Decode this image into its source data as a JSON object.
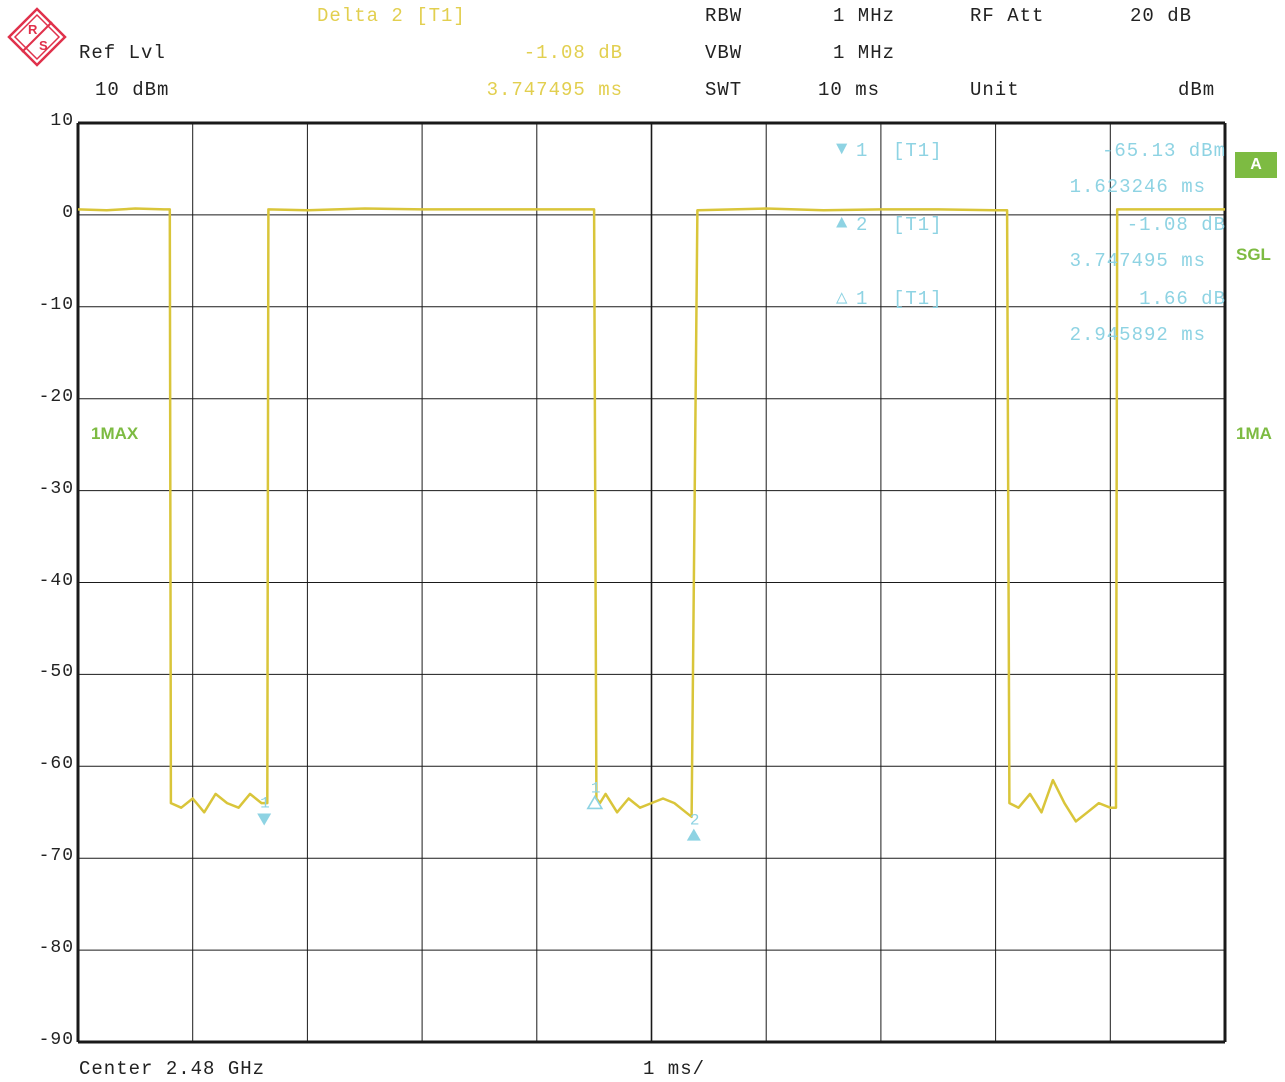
{
  "header": {
    "delta_label": "Delta 2 [T1]",
    "delta_level": "-1.08 dB",
    "delta_time": "3.747495 ms",
    "ref_lvl_label": "Ref Lvl",
    "ref_lvl_value": "10 dBm",
    "rbw_label": "RBW",
    "rbw_value": "1 MHz",
    "vbw_label": "VBW",
    "vbw_value": "1 MHz",
    "swt_label": "SWT",
    "swt_value": "10 ms",
    "rf_att_label": "RF Att",
    "rf_att_value": "20 dB",
    "unit_label": "Unit",
    "unit_value": "dBm"
  },
  "markers_panel": [
    {
      "symbol": "▼",
      "id": "1",
      "tag": "[T1]",
      "level": "-65.13 dBm",
      "time": "1.623246 ms"
    },
    {
      "symbol": "▲",
      "id": "2",
      "tag": "[T1]",
      "level": "-1.08 dB",
      "time": "3.747495 ms"
    },
    {
      "symbol": "△",
      "id": "1",
      "tag": "[T1]",
      "level": "1.66 dB",
      "time": "2.945892 ms"
    }
  ],
  "side_labels": {
    "badge": "A",
    "sgl": "SGL",
    "trace_left": "1MAX",
    "trace_right": "1MA"
  },
  "footer": {
    "center": "Center 2.48 GHz",
    "span": "1 ms/"
  },
  "colors": {
    "trace": "#d9c53a",
    "marker": "#8ed3e3",
    "grid": "#1a1a1a",
    "accent": "#7dbb42",
    "logo": "#e0314b"
  },
  "chart_data": {
    "type": "line",
    "xlabel": "",
    "ylabel": "",
    "xlim": [
      0,
      10
    ],
    "ylim": [
      -90,
      10
    ],
    "y_ticks": [
      "10",
      "0",
      "-10",
      "-20",
      "-30",
      "-40",
      "-50",
      "-60",
      "-70",
      "-80",
      "-90"
    ],
    "series": [
      {
        "x": [
          0,
          0.25,
          0.5,
          0.75,
          0.8,
          0.81,
          0.9,
          1.0,
          1.1,
          1.2,
          1.3,
          1.4,
          1.5,
          1.6,
          1.65,
          1.66,
          2.0,
          2.5,
          3.0,
          3.5,
          4.0,
          4.5,
          4.52,
          4.55,
          4.6,
          4.7,
          4.8,
          4.9,
          5.0,
          5.1,
          5.2,
          5.3,
          5.35,
          5.4,
          6.0,
          6.5,
          7.0,
          7.5,
          8.0,
          8.1,
          8.12,
          8.2,
          8.3,
          8.4,
          8.5,
          8.6,
          8.7,
          8.8,
          8.9,
          9.0,
          9.05,
          9.06,
          9.5,
          10
        ],
        "y": [
          0.6,
          0.5,
          0.7,
          0.6,
          0.6,
          -64,
          -64.5,
          -63.5,
          -65,
          -63,
          -64,
          -64.5,
          -63,
          -64,
          -64,
          0.6,
          0.5,
          0.7,
          0.6,
          0.6,
          0.6,
          0.6,
          -63.5,
          -64,
          -63,
          -65,
          -63.5,
          -64.5,
          -64,
          -63.5,
          -64,
          -65,
          -65.5,
          0.5,
          0.7,
          0.5,
          0.6,
          0.6,
          0.5,
          0.5,
          -64,
          -64.5,
          -63,
          -65,
          -61.5,
          -64,
          -66,
          -65,
          -64,
          -64.5,
          -64.5,
          0.6,
          0.6,
          0.6
        ]
      }
    ],
    "markers": [
      {
        "label": "1",
        "x": 1.623246,
        "y": -65.13,
        "symbol": "down"
      },
      {
        "label": "1",
        "x": 4.506,
        "y": -63.5,
        "symbol": "delta"
      },
      {
        "label": "2",
        "x": 5.369,
        "y": -67.0,
        "symbol": "up"
      }
    ]
  }
}
